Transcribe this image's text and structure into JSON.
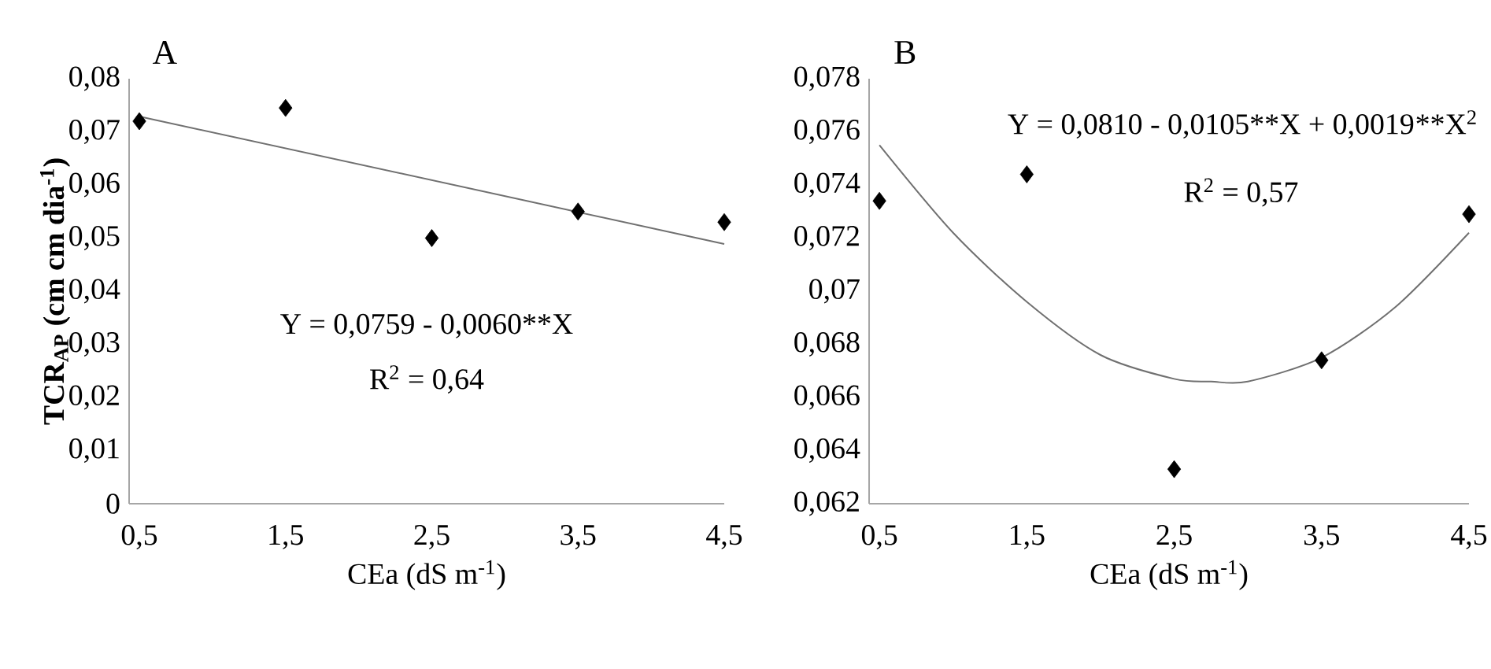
{
  "chart_data": [
    {
      "type": "scatter",
      "title": "A",
      "xlabel": "CEa (dS m$^{-1}$)",
      "ylabel": "TCR$_{AP}$ (cm cm dia$^{-1}$)",
      "xlim": [
        0.43,
        4.5
      ],
      "ylim": [
        0,
        0.08
      ],
      "xticks": [
        {
          "value": 0.5,
          "label": "0,5"
        },
        {
          "value": 1.5,
          "label": "1,5"
        },
        {
          "value": 2.5,
          "label": "2,5"
        },
        {
          "value": 3.5,
          "label": "3,5"
        },
        {
          "value": 4.5,
          "label": "4,5"
        }
      ],
      "yticks": [
        0,
        {
          "value": 0.01,
          "label": "0,01"
        },
        {
          "value": 0.02,
          "label": "0,02"
        },
        {
          "value": 0.03,
          "label": "0,03"
        },
        {
          "value": 0.04,
          "label": "0,04"
        },
        {
          "value": 0.05,
          "label": "0,05"
        },
        {
          "value": 0.06,
          "label": "0,06"
        },
        {
          "value": 0.07,
          "label": "0,07"
        },
        {
          "value": 0.08,
          "label": "0,08"
        }
      ],
      "series": [
        {
          "type": "scatter",
          "marker": "diamond",
          "color": "#000000",
          "x": [
            0.5,
            1.5,
            2.5,
            3.5,
            4.5
          ],
          "values": [
            0.072,
            0.0745,
            0.05,
            0.055,
            0.053
          ]
        },
        {
          "type": "line",
          "marker": "none",
          "color": "#707070",
          "x": [
            0.5,
            4.5
          ],
          "values": [
            0.0729,
            0.0489
          ]
        }
      ],
      "annotations": [
        "Y = 0,0759 - 0,0060**X",
        "R$^{2}$ = 0,64"
      ]
    },
    {
      "type": "scatter",
      "title": "B",
      "xlabel": "CEa (dS m$^{-1}$)",
      "xlim": [
        0.43,
        4.5
      ],
      "ylim": [
        0.062,
        0.078
      ],
      "xticks": [
        {
          "value": 0.5,
          "label": "0,5"
        },
        {
          "value": 1.5,
          "label": "1,5"
        },
        {
          "value": 2.5,
          "label": "2,5"
        },
        {
          "value": 3.5,
          "label": "3,5"
        },
        {
          "value": 4.5,
          "label": "4,5"
        }
      ],
      "yticks": [
        {
          "value": 0.062,
          "label": "0,062"
        },
        {
          "value": 0.064,
          "label": "0,064"
        },
        {
          "value": 0.066,
          "label": "0,066"
        },
        {
          "value": 0.068,
          "label": "0,068"
        },
        {
          "value": 0.07,
          "label": "0,07"
        },
        {
          "value": 0.072,
          "label": "0,072"
        },
        {
          "value": 0.074,
          "label": "0,074"
        },
        {
          "value": 0.076,
          "label": "0,076"
        },
        {
          "value": 0.078,
          "label": "0,078"
        }
      ],
      "series": [
        {
          "type": "scatter",
          "marker": "diamond",
          "color": "#000000",
          "x": [
            0.5,
            1.5,
            2.5,
            3.5,
            4.5
          ],
          "values": [
            0.0734,
            0.0744,
            0.0633,
            0.0674,
            0.0729
          ]
        },
        {
          "type": "line",
          "marker": "none",
          "color": "#707070",
          "x": [
            0.5,
            1.0,
            1.5,
            2.0,
            2.5,
            2.75,
            3.0,
            3.5,
            4.0,
            4.5
          ],
          "values": [
            0.0755,
            0.0722,
            0.0696,
            0.0676,
            0.0667,
            0.0666,
            0.0666,
            0.0675,
            0.0694,
            0.0722
          ]
        }
      ],
      "annotations": [
        "Y = 0,0810 - 0,0105**X + 0,0019",
        "**X$^{2}$",
        "R$^{2}$ = 0,57"
      ]
    }
  ]
}
